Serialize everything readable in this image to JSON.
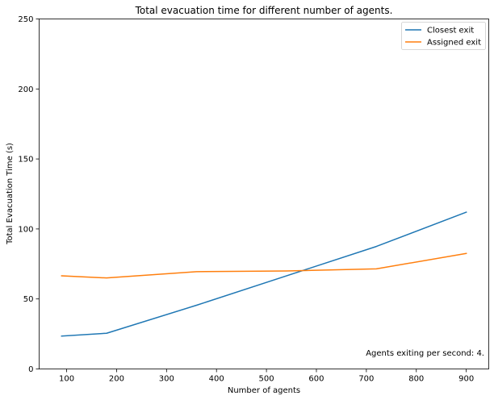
{
  "chart_data": {
    "type": "line",
    "title": "Total evacuation time for different number of agents.",
    "xlabel": "Number of agents",
    "ylabel": "Total Evacuation Time (s)",
    "xlim": [
      45,
      945
    ],
    "ylim": [
      0,
      250
    ],
    "xticks": [
      100,
      200,
      300,
      400,
      500,
      600,
      700,
      800,
      900
    ],
    "yticks": [
      0,
      50,
      100,
      150,
      200,
      250
    ],
    "grid": false,
    "legend_position": "top-right",
    "annotation": "Agents exiting per second: 4.",
    "series": [
      {
        "name": "Closest exit",
        "color": "#1f77b4",
        "x": [
          90,
          180,
          360,
          540,
          720,
          900
        ],
        "y": [
          23.5,
          25.5,
          45.5,
          66.5,
          87.5,
          112
        ]
      },
      {
        "name": "Assigned exit",
        "color": "#ff7f0e",
        "x": [
          90,
          180,
          360,
          540,
          720,
          900
        ],
        "y": [
          66.5,
          65,
          69.5,
          70,
          71.5,
          82.5
        ]
      }
    ]
  }
}
